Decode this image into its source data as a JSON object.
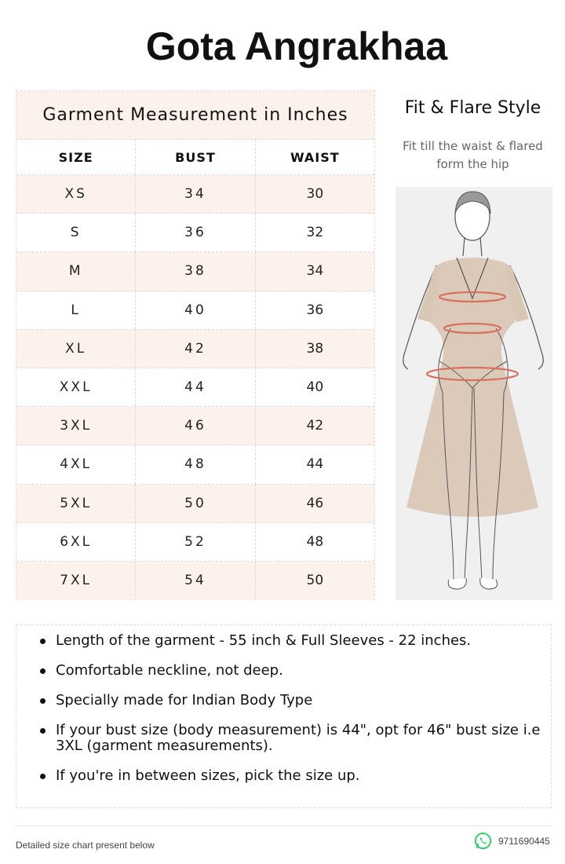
{
  "title": "Gota Angrakhaa",
  "size_table": {
    "caption": "Garment Measurement in Inches",
    "headers": [
      "SIZE",
      "BUST",
      "WAIST"
    ],
    "rows": [
      [
        "XS",
        "34",
        "30"
      ],
      [
        "S",
        "36",
        "32"
      ],
      [
        "M",
        "38",
        "34"
      ],
      [
        "L",
        "40",
        "36"
      ],
      [
        "XL",
        "42",
        "38"
      ],
      [
        "XXL",
        "44",
        "40"
      ],
      [
        "3XL",
        "46",
        "42"
      ],
      [
        "4XL",
        "48",
        "44"
      ],
      [
        "5XL",
        "50",
        "46"
      ],
      [
        "6XL",
        "52",
        "48"
      ],
      [
        "7XL",
        "54",
        "50"
      ]
    ],
    "colors": {
      "tint": "#fdf1ec",
      "border": "#dcdcdc"
    }
  },
  "style": {
    "title": "Fit & Flare Style",
    "description": "Fit till the waist & flared form the hip",
    "figure_icon": "dress-figure-illustration",
    "colors": {
      "dress": "#d9c7b6",
      "measure_line": "#d9705e",
      "background": "#f0f0f0"
    }
  },
  "notes": [
    "Length of the garment - 55 inch & Full Sleeves - 22 inches.",
    "Comfortable neckline, not deep.",
    "Specially made for Indian Body Type",
    "If your bust size (body measurement) is 44\", opt for 46\" bust size i.e 3XL (garment measurements).",
    "If you're in between sizes, pick the size up."
  ],
  "footer": {
    "left_text": "Detailed size chart present below",
    "phone": "9711690445",
    "icon": "whatsapp-icon",
    "icon_color": "#25d366"
  }
}
